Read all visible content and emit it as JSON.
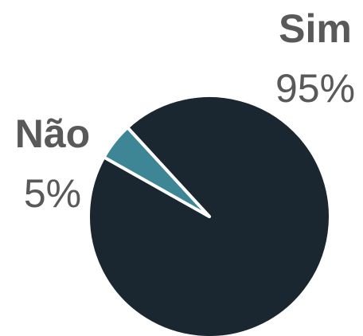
{
  "chart_data": {
    "type": "pie",
    "categories": [
      "Sim",
      "Não"
    ],
    "values": [
      95,
      5
    ],
    "value_labels": [
      "95%",
      "5%"
    ],
    "colors": [
      "#1b2730",
      "#3e8596"
    ]
  }
}
